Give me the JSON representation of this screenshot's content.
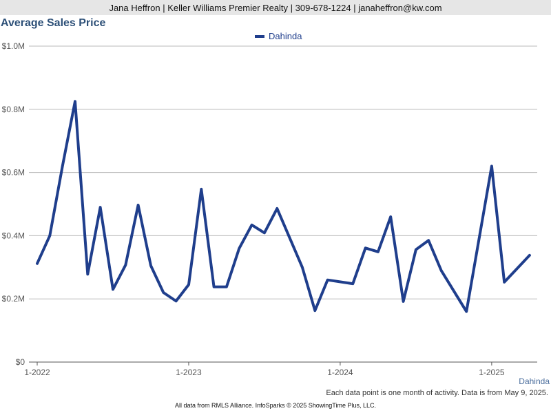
{
  "header": {
    "contact": "Jana Heffron | Keller Williams Premier Realty | 309-678-1224 | janaheffron@kw.com"
  },
  "chart_data": {
    "type": "line",
    "title": "Average Sales Price",
    "xlabel": "",
    "ylabel": "",
    "ylim": [
      0,
      1000000
    ],
    "grid": true,
    "legend_position": "top-center",
    "y_ticks": [
      {
        "value": 0,
        "label": "$0"
      },
      {
        "value": 200000,
        "label": "$0.2M"
      },
      {
        "value": 400000,
        "label": "$0.4M"
      },
      {
        "value": 600000,
        "label": "$0.6M"
      },
      {
        "value": 800000,
        "label": "$0.8M"
      },
      {
        "value": 1000000,
        "label": "$1.0M"
      }
    ],
    "x_ticks": [
      {
        "index": 0,
        "label": "1-2022"
      },
      {
        "index": 12,
        "label": "1-2023"
      },
      {
        "index": 24,
        "label": "1-2024"
      },
      {
        "index": 36,
        "label": "1-2025"
      }
    ],
    "x": [
      "1-2022",
      "2-2022",
      "3-2022",
      "4-2022",
      "5-2022",
      "6-2022",
      "7-2022",
      "8-2022",
      "9-2022",
      "10-2022",
      "11-2022",
      "12-2022",
      "1-2023",
      "2-2023",
      "3-2023",
      "4-2023",
      "5-2023",
      "6-2023",
      "7-2023",
      "8-2023",
      "9-2023",
      "10-2023",
      "11-2023",
      "12-2023",
      "1-2024",
      "2-2024",
      "3-2024",
      "4-2024",
      "5-2024",
      "6-2024",
      "7-2024",
      "8-2024",
      "9-2024",
      "10-2024",
      "11-2024",
      "12-2024",
      "1-2025",
      "2-2025",
      "3-2025",
      "4-2025"
    ],
    "series": [
      {
        "name": "Dahinda",
        "color": "#1f3e8c",
        "values": [
          312000,
          400000,
          620000,
          825000,
          278000,
          490000,
          230000,
          307000,
          497000,
          305000,
          220000,
          193000,
          245000,
          547000,
          238000,
          238000,
          360000,
          434000,
          409000,
          486000,
          null,
          300000,
          163000,
          260000,
          null,
          248000,
          361000,
          349000,
          460000,
          192000,
          356000,
          385000,
          290000,
          null,
          160000,
          null,
          620000,
          253000,
          null,
          338000
        ]
      }
    ]
  },
  "series_tag": "Dahinda",
  "note": "Each data point is one month of activity. Data is from May 9, 2025.",
  "footer": "All data from RMLS Alliance. InfoSparks © 2025 ShowingTime Plus, LLC."
}
